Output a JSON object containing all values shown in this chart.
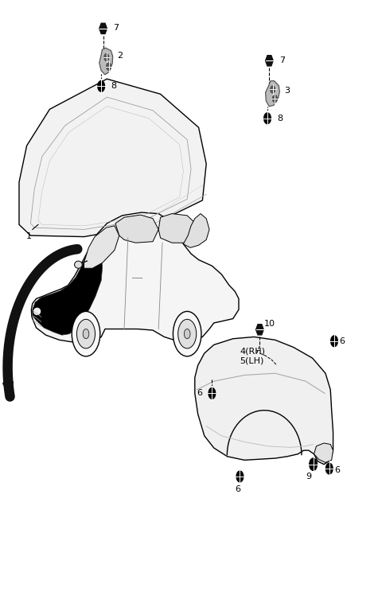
{
  "bg_color": "#ffffff",
  "line_color": "#000000",
  "fig_width": 4.8,
  "fig_height": 7.63,
  "dpi": 100,
  "fs_label": 8
}
